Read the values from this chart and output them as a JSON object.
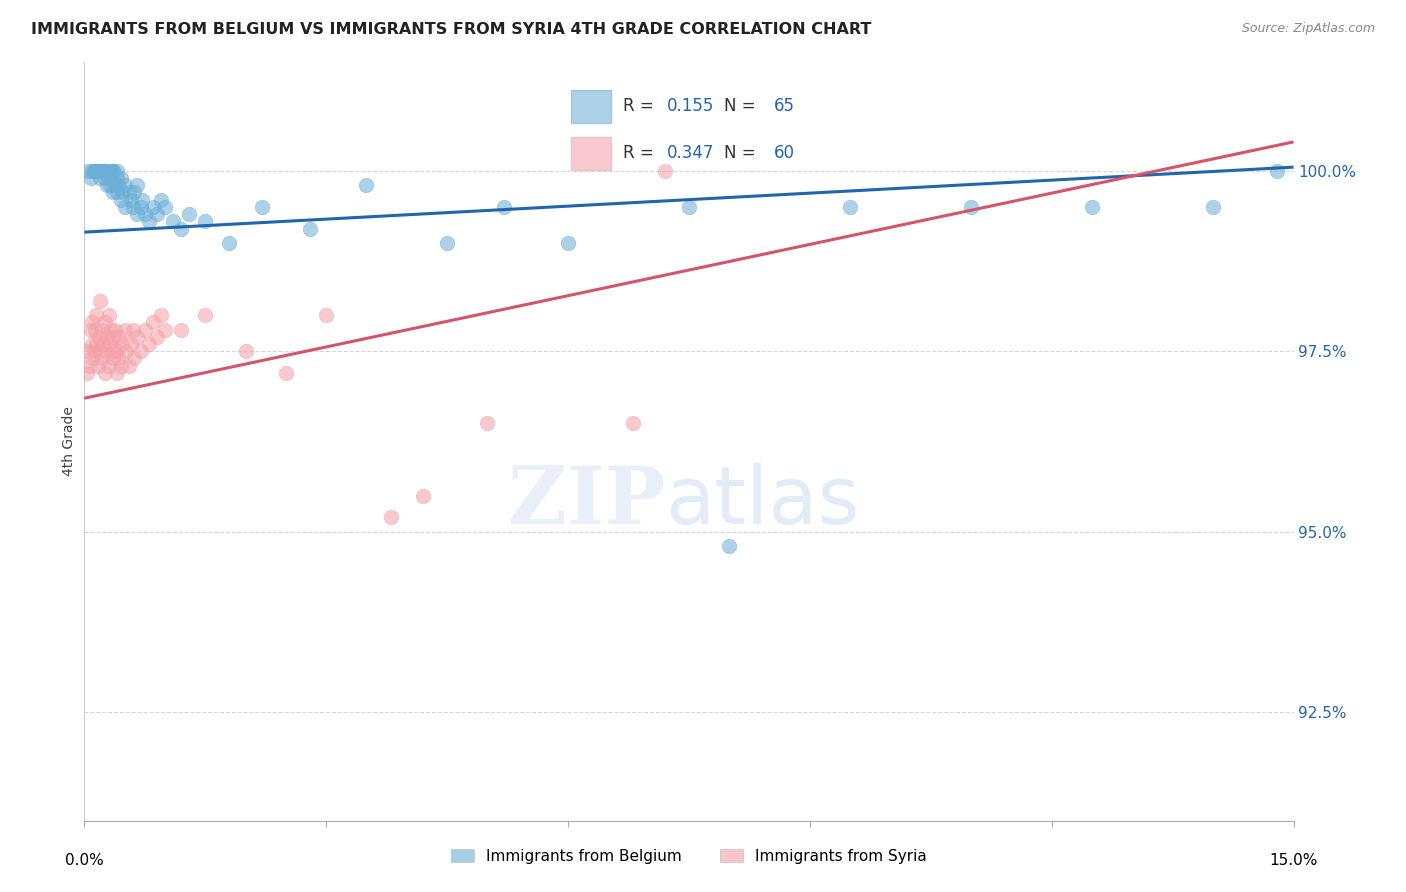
{
  "title": "IMMIGRANTS FROM BELGIUM VS IMMIGRANTS FROM SYRIA 4TH GRADE CORRELATION CHART",
  "source": "Source: ZipAtlas.com",
  "ylabel": "4th Grade",
  "xlim": [
    0.0,
    15.0
  ],
  "ylim": [
    91.0,
    101.5
  ],
  "yticks": [
    92.5,
    95.0,
    97.5,
    100.0
  ],
  "ytick_labels": [
    "92.5%",
    "95.0%",
    "97.5%",
    "100.0%"
  ],
  "belgium_color": "#6baed6",
  "syria_color": "#f4a0a8",
  "trend_belgium_color": "#2166ac",
  "trend_syria_color": "#d4546a",
  "belgium_R": 0.155,
  "belgium_N": 65,
  "syria_R": 0.347,
  "syria_N": 60,
  "legend_belgium": "Immigrants from Belgium",
  "legend_syria": "Immigrants from Syria",
  "belgium_scatter_x": [
    0.05,
    0.08,
    0.1,
    0.12,
    0.13,
    0.15,
    0.15,
    0.18,
    0.2,
    0.2,
    0.22,
    0.23,
    0.25,
    0.25,
    0.25,
    0.28,
    0.3,
    0.3,
    0.32,
    0.33,
    0.35,
    0.35,
    0.35,
    0.38,
    0.4,
    0.4,
    0.4,
    0.42,
    0.45,
    0.45,
    0.47,
    0.5,
    0.5,
    0.55,
    0.58,
    0.6,
    0.62,
    0.65,
    0.65,
    0.7,
    0.72,
    0.75,
    0.8,
    0.85,
    0.9,
    0.95,
    1.0,
    1.1,
    1.2,
    1.3,
    1.5,
    1.8,
    2.2,
    2.8,
    3.5,
    4.5,
    5.2,
    6.0,
    7.5,
    8.0,
    9.5,
    11.0,
    12.5,
    14.0,
    14.8
  ],
  "belgium_scatter_y": [
    100.0,
    99.9,
    100.0,
    100.0,
    100.0,
    100.0,
    100.0,
    100.0,
    100.0,
    99.9,
    100.0,
    100.0,
    100.0,
    99.9,
    100.0,
    99.8,
    100.0,
    99.9,
    99.8,
    100.0,
    99.7,
    100.0,
    100.0,
    99.8,
    99.9,
    100.0,
    99.7,
    99.8,
    99.6,
    99.9,
    99.7,
    99.5,
    99.8,
    99.7,
    99.6,
    99.5,
    99.7,
    99.4,
    99.8,
    99.5,
    99.6,
    99.4,
    99.3,
    99.5,
    99.4,
    99.6,
    99.5,
    99.3,
    99.2,
    99.4,
    99.3,
    99.0,
    99.5,
    99.2,
    99.8,
    99.0,
    99.5,
    99.0,
    99.5,
    94.8,
    99.5,
    99.5,
    99.5,
    99.5,
    100.0
  ],
  "syria_scatter_x": [
    0.03,
    0.05,
    0.07,
    0.08,
    0.09,
    0.1,
    0.1,
    0.12,
    0.13,
    0.15,
    0.15,
    0.17,
    0.18,
    0.2,
    0.2,
    0.22,
    0.22,
    0.23,
    0.25,
    0.25,
    0.27,
    0.28,
    0.3,
    0.3,
    0.32,
    0.33,
    0.35,
    0.35,
    0.37,
    0.38,
    0.4,
    0.4,
    0.42,
    0.43,
    0.45,
    0.47,
    0.5,
    0.52,
    0.55,
    0.58,
    0.6,
    0.62,
    0.65,
    0.7,
    0.75,
    0.8,
    0.85,
    0.9,
    0.95,
    1.0,
    1.2,
    1.5,
    2.0,
    2.5,
    3.0,
    3.8,
    4.2,
    5.0,
    6.8,
    7.2
  ],
  "syria_scatter_y": [
    97.2,
    97.5,
    97.3,
    97.8,
    97.6,
    97.4,
    97.9,
    97.5,
    97.8,
    97.6,
    98.0,
    97.3,
    97.7,
    97.5,
    98.2,
    97.8,
    97.4,
    97.6,
    97.2,
    97.9,
    97.5,
    97.7,
    97.3,
    98.0,
    97.6,
    97.8,
    97.4,
    97.7,
    97.5,
    97.8,
    97.2,
    97.5,
    97.4,
    97.7,
    97.3,
    97.6,
    97.8,
    97.5,
    97.3,
    97.6,
    97.8,
    97.4,
    97.7,
    97.5,
    97.8,
    97.6,
    97.9,
    97.7,
    98.0,
    97.8,
    97.8,
    98.0,
    97.5,
    97.2,
    98.0,
    95.2,
    95.5,
    96.5,
    96.5,
    100.0
  ]
}
